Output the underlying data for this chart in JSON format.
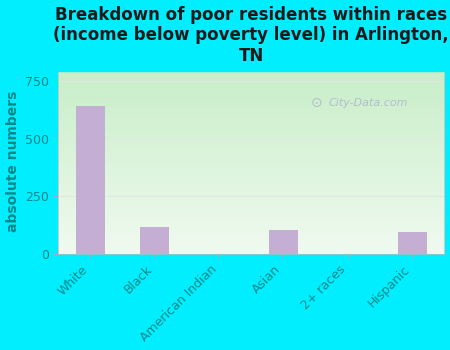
{
  "categories": [
    "White",
    "Black",
    "American Indian",
    "Asian",
    "2+ races",
    "Hispanic"
  ],
  "values": [
    640,
    115,
    0,
    105,
    0,
    95
  ],
  "bar_color": "#c4aed4",
  "title": "Breakdown of poor residents within races\n(income below poverty level) in Arlington,\nTN",
  "ylabel": "absolute numbers",
  "ylim": [
    0,
    800
  ],
  "yticks": [
    0,
    250,
    500,
    750
  ],
  "bg_color": "#00eeff",
  "plot_bg_topleft": "#c8eec8",
  "plot_bg_bottomright": "#f0faf0",
  "watermark": "City-Data.com",
  "title_fontsize": 12,
  "ylabel_fontsize": 10,
  "tick_fontsize": 9,
  "title_color": "#1a1a1a",
  "axis_color": "#008888",
  "grid_color": "#e0e8e0"
}
